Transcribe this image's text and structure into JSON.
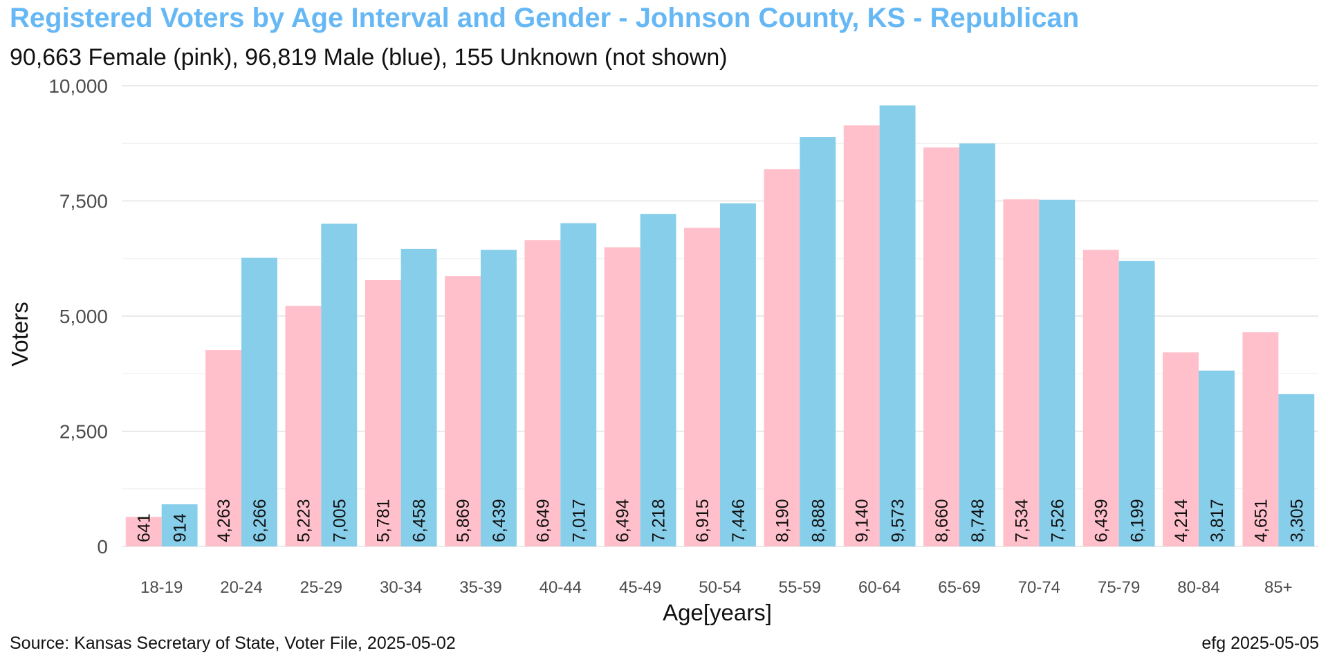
{
  "header": {
    "title": "Registered Voters by Age Interval and Gender - Johnson County, KS - Republican",
    "subtitle": "90,663 Female (pink),  96,819 Male (blue),  155 Unknown (not shown)"
  },
  "footer": {
    "source": "Source: Kansas Secretary of State, Voter File, 2025-05-02",
    "credit": "efg 2025-05-05"
  },
  "chart_data": {
    "type": "bar",
    "title": "Registered Voters by Age Interval and Gender - Johnson County, KS - Republican",
    "subtitle": "90,663 Female (pink),  96,819 Male (blue),  155 Unknown (not shown)",
    "xlabel": "Age[years]",
    "ylabel": "Voters",
    "ylim": [
      0,
      10000
    ],
    "yticks": [
      0,
      2500,
      5000,
      7500,
      10000
    ],
    "ytick_labels": [
      "0",
      "2,500",
      "5,000",
      "7,500",
      "10,000"
    ],
    "grid": true,
    "legend": "none",
    "categories": [
      "18-19",
      "20-24",
      "25-29",
      "30-34",
      "35-39",
      "40-44",
      "45-49",
      "50-54",
      "55-59",
      "60-64",
      "65-69",
      "70-74",
      "75-79",
      "80-84",
      "85+"
    ],
    "series": [
      {
        "color": "#ffc0cb",
        "values": [
          641,
          4263,
          5223,
          5781,
          5869,
          6649,
          6494,
          6915,
          8190,
          9140,
          8660,
          7534,
          6439,
          4214,
          4651
        ],
        "labels": [
          "641",
          "4,263",
          "5,223",
          "5,781",
          "5,869",
          "6,649",
          "6,494",
          "6,915",
          "8,190",
          "9,140",
          "8,660",
          "7,534",
          "6,439",
          "4,214",
          "4,651"
        ]
      },
      {
        "color": "#87ceeb",
        "values": [
          914,
          6266,
          7005,
          6458,
          6439,
          7017,
          7218,
          7446,
          8888,
          9573,
          8748,
          7526,
          6199,
          3817,
          3305
        ],
        "labels": [
          "914",
          "6,266",
          "7,005",
          "6,458",
          "6,439",
          "7,017",
          "7,218",
          "7,446",
          "8,888",
          "9,573",
          "8,748",
          "7,526",
          "6,199",
          "3,817",
          "3,305"
        ]
      }
    ]
  }
}
